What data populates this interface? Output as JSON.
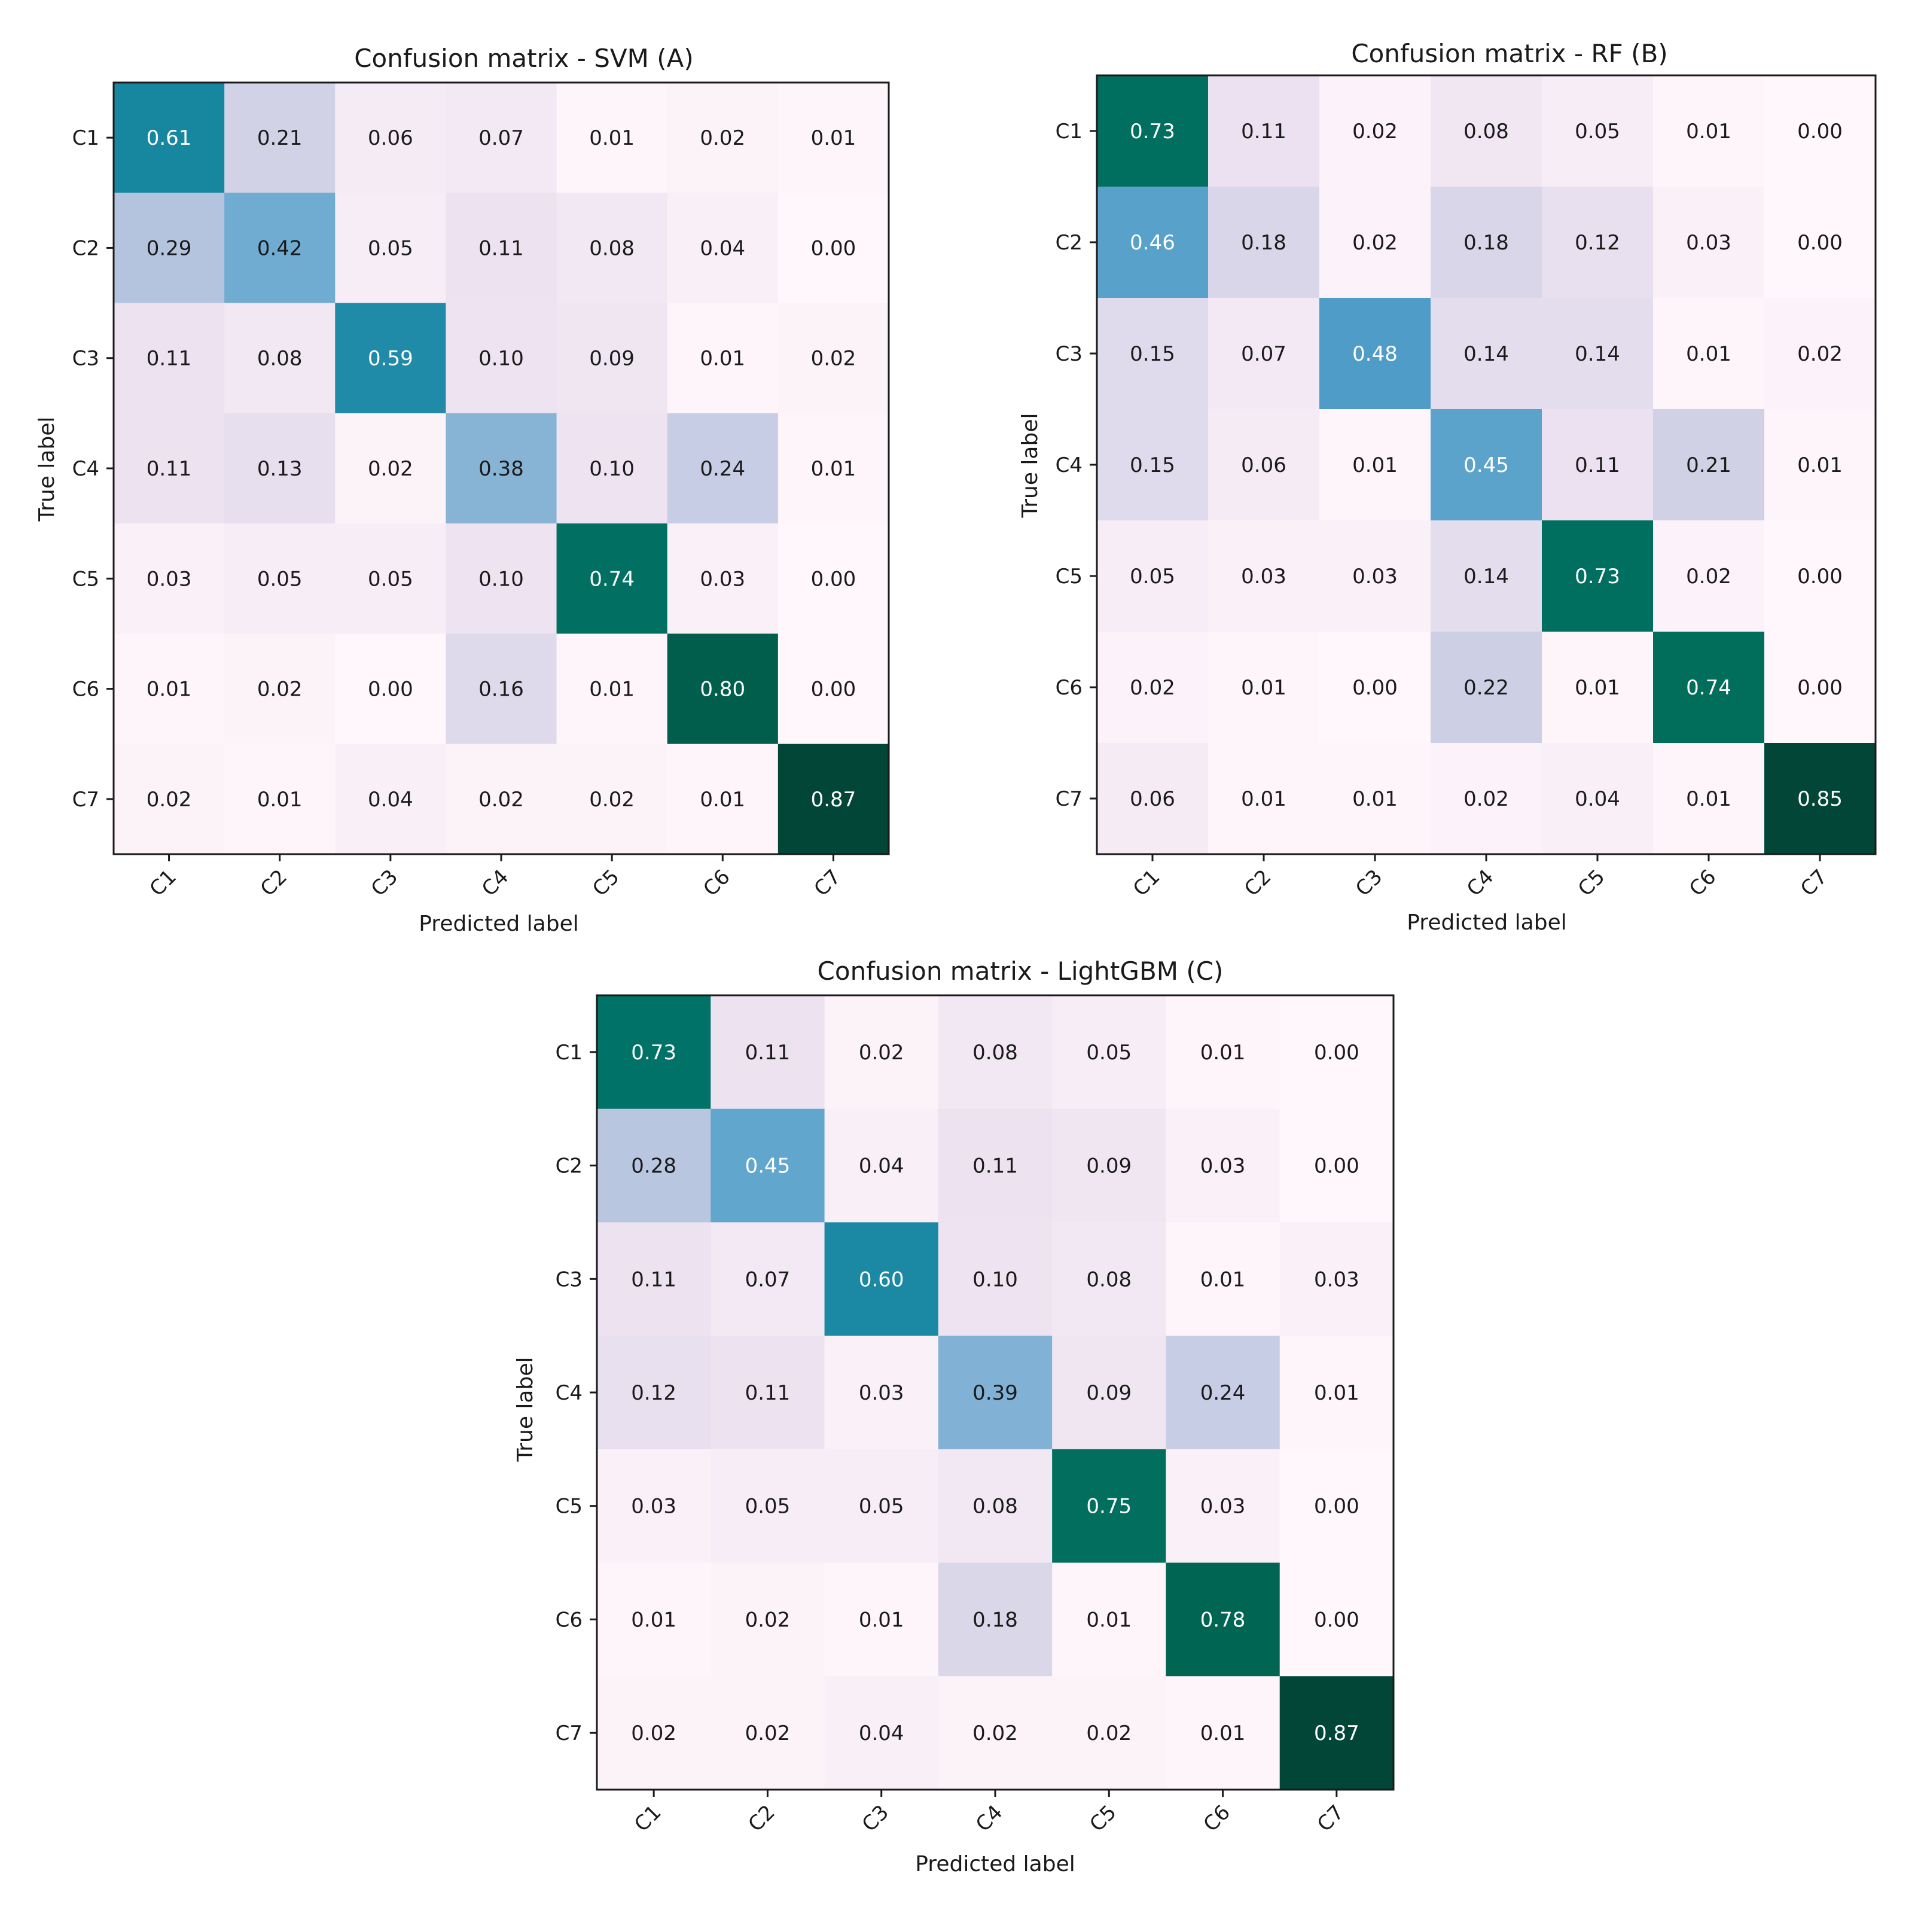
{
  "figure": {
    "background": "#ffffff"
  },
  "colors": {
    "low": "#fff7fb",
    "scale": [
      "#fff7fb",
      "#ece2f0",
      "#d0d1e6",
      "#a6bddb",
      "#67a9cf",
      "#3690c0",
      "#02818a",
      "#016c59",
      "#014636"
    ],
    "text_dark": "#1a1a1a",
    "text_light": "#ffffff"
  },
  "chart_data": [
    {
      "type": "heatmap",
      "id": "svm",
      "title": "Confusion matrix - SVM (A)",
      "xlabel": "Predicted label",
      "ylabel": "True label",
      "x_categories": [
        "C1",
        "C2",
        "C3",
        "C4",
        "C5",
        "C6",
        "C7"
      ],
      "y_categories": [
        "C1",
        "C2",
        "C3",
        "C4",
        "C5",
        "C6",
        "C7"
      ],
      "value_range": [
        0,
        1
      ],
      "values": [
        [
          "0.61",
          "0.21",
          "0.06",
          "0.07",
          "0.01",
          "0.02",
          "0.01"
        ],
        [
          "0.29",
          "0.42",
          "0.05",
          "0.11",
          "0.08",
          "0.04",
          "0.00"
        ],
        [
          "0.11",
          "0.08",
          "0.59",
          "0.10",
          "0.09",
          "0.01",
          "0.02"
        ],
        [
          "0.11",
          "0.13",
          "0.02",
          "0.38",
          "0.10",
          "0.24",
          "0.01"
        ],
        [
          "0.03",
          "0.05",
          "0.05",
          "0.10",
          "0.74",
          "0.03",
          "0.00"
        ],
        [
          "0.01",
          "0.02",
          "0.00",
          "0.16",
          "0.01",
          "0.80",
          "0.00"
        ],
        [
          "0.02",
          "0.01",
          "0.04",
          "0.02",
          "0.02",
          "0.01",
          "0.87"
        ]
      ]
    },
    {
      "type": "heatmap",
      "id": "rf",
      "title": "Confusion matrix - RF (B)",
      "xlabel": "Predicted label",
      "ylabel": "True label",
      "x_categories": [
        "C1",
        "C2",
        "C3",
        "C4",
        "C5",
        "C6",
        "C7"
      ],
      "y_categories": [
        "C1",
        "C2",
        "C3",
        "C4",
        "C5",
        "C6",
        "C7"
      ],
      "value_range": [
        0,
        1
      ],
      "values": [
        [
          "0.73",
          "0.11",
          "0.02",
          "0.08",
          "0.05",
          "0.01",
          "0.00"
        ],
        [
          "0.46",
          "0.18",
          "0.02",
          "0.18",
          "0.12",
          "0.03",
          "0.00"
        ],
        [
          "0.15",
          "0.07",
          "0.48",
          "0.14",
          "0.14",
          "0.01",
          "0.02"
        ],
        [
          "0.15",
          "0.06",
          "0.01",
          "0.45",
          "0.11",
          "0.21",
          "0.01"
        ],
        [
          "0.05",
          "0.03",
          "0.03",
          "0.14",
          "0.73",
          "0.02",
          "0.00"
        ],
        [
          "0.02",
          "0.01",
          "0.00",
          "0.22",
          "0.01",
          "0.74",
          "0.00"
        ],
        [
          "0.06",
          "0.01",
          "0.01",
          "0.02",
          "0.04",
          "0.01",
          "0.85"
        ]
      ]
    },
    {
      "type": "heatmap",
      "id": "lightgbm",
      "title": "Confusion matrix - LightGBM (C)",
      "xlabel": "Predicted label",
      "ylabel": "True label",
      "x_categories": [
        "C1",
        "C2",
        "C3",
        "C4",
        "C5",
        "C6",
        "C7"
      ],
      "y_categories": [
        "C1",
        "C2",
        "C3",
        "C4",
        "C5",
        "C6",
        "C7"
      ],
      "value_range": [
        0,
        1
      ],
      "values": [
        [
          "0.73",
          "0.11",
          "0.02",
          "0.08",
          "0.05",
          "0.01",
          "0.00"
        ],
        [
          "0.28",
          "0.45",
          "0.04",
          "0.11",
          "0.09",
          "0.03",
          "0.00"
        ],
        [
          "0.11",
          "0.07",
          "0.60",
          "0.10",
          "0.08",
          "0.01",
          "0.03"
        ],
        [
          "0.12",
          "0.11",
          "0.03",
          "0.39",
          "0.09",
          "0.24",
          "0.01"
        ],
        [
          "0.03",
          "0.05",
          "0.05",
          "0.08",
          "0.75",
          "0.03",
          "0.00"
        ],
        [
          "0.01",
          "0.02",
          "0.01",
          "0.18",
          "0.01",
          "0.78",
          "0.00"
        ],
        [
          "0.02",
          "0.02",
          "0.04",
          "0.02",
          "0.02",
          "0.01",
          "0.87"
        ]
      ]
    }
  ]
}
